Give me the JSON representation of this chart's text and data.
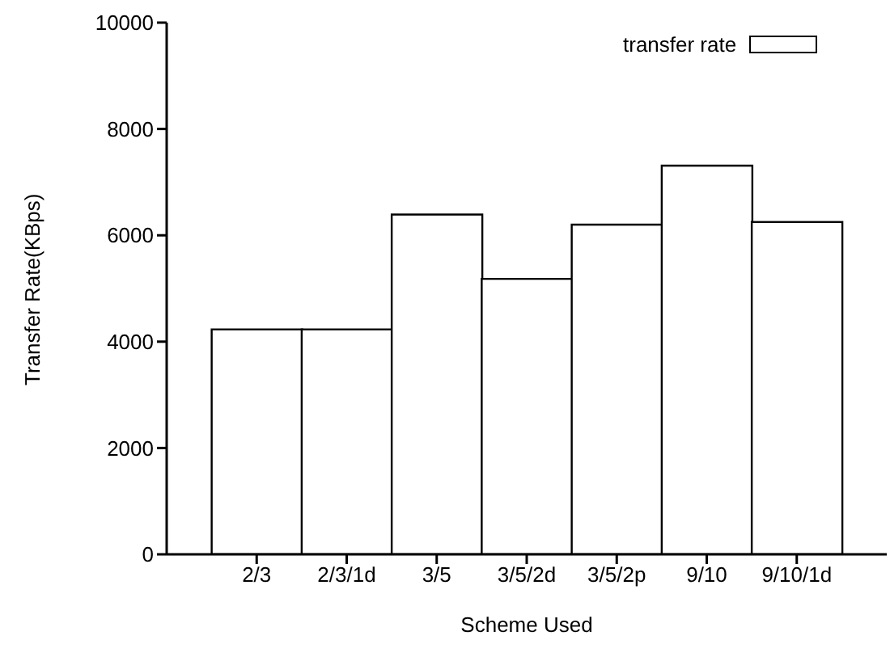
{
  "chart_data": {
    "type": "bar",
    "xlabel": "Scheme Used",
    "ylabel": "Transfer Rate(KBps)",
    "categories": [
      "2/3",
      "2/3/1d",
      "3/5",
      "3/5/2d",
      "3/5/2p",
      "9/10",
      "9/10/1d"
    ],
    "series": [
      {
        "name": "transfer rate",
        "color": "#ffffff",
        "values": [
          4230,
          4230,
          6390,
          5180,
          6200,
          7310,
          6250
        ]
      }
    ],
    "ylim": [
      0,
      10000
    ],
    "yticks": [
      0,
      2000,
      4000,
      6000,
      8000,
      10000
    ],
    "grid": false,
    "legend": "top right"
  }
}
